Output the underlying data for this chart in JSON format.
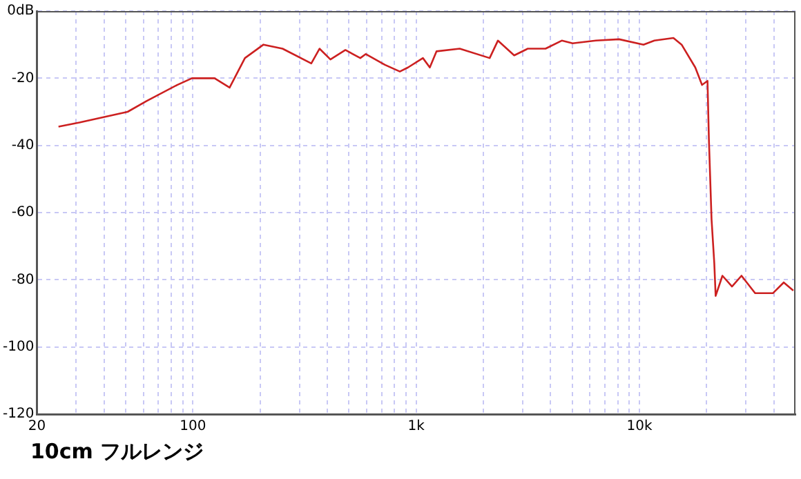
{
  "chart_data": {
    "type": "line",
    "title": "10cm フルレンジ",
    "xlim": [
      20,
      50000
    ],
    "ylim": [
      -120,
      0
    ],
    "log": "x",
    "grid": true,
    "legend": false,
    "marker": "none",
    "line_style": "solid",
    "xticks": [
      {
        "value": 20,
        "label": "20"
      },
      {
        "value": 30,
        "label": null
      },
      {
        "value": 40,
        "label": null
      },
      {
        "value": 50,
        "label": null
      },
      {
        "value": 60,
        "label": null
      },
      {
        "value": 70,
        "label": null
      },
      {
        "value": 80,
        "label": null
      },
      {
        "value": 90,
        "label": null
      },
      {
        "value": 100,
        "label": "100"
      },
      {
        "value": 200,
        "label": null
      },
      {
        "value": 300,
        "label": null
      },
      {
        "value": 400,
        "label": null
      },
      {
        "value": 500,
        "label": null
      },
      {
        "value": 600,
        "label": null
      },
      {
        "value": 700,
        "label": null
      },
      {
        "value": 800,
        "label": null
      },
      {
        "value": 900,
        "label": null
      },
      {
        "value": 1000,
        "label": "1k"
      },
      {
        "value": 2000,
        "label": null
      },
      {
        "value": 3000,
        "label": null
      },
      {
        "value": 4000,
        "label": null
      },
      {
        "value": 5000,
        "label": null
      },
      {
        "value": 6000,
        "label": null
      },
      {
        "value": 7000,
        "label": null
      },
      {
        "value": 8000,
        "label": null
      },
      {
        "value": 9000,
        "label": null
      },
      {
        "value": 10000,
        "label": "10k"
      },
      {
        "value": 20000,
        "label": null
      },
      {
        "value": 30000,
        "label": null
      },
      {
        "value": 40000,
        "label": null
      }
    ],
    "yticks": [
      {
        "value": 0,
        "label": "0dB"
      },
      -20,
      -40,
      -60,
      -80,
      -100,
      -120
    ],
    "series": [
      {
        "color": "#cc2020",
        "x": [
          25,
          31,
          51,
          62,
          85,
          99,
          125,
          146,
          171,
          207,
          252,
          339,
          369,
          413,
          482,
          562,
          595,
          724,
          845,
          919,
          1072,
          1151,
          1233,
          1567,
          2134,
          2323,
          2748,
          3162,
          3796,
          4490,
          5021,
          6383,
          8110,
          10430,
          11670,
          14200,
          15450,
          17790,
          19070,
          20180,
          20470,
          21040,
          21640,
          21950,
          23540,
          25980,
          28650,
          32980,
          39600,
          44300,
          48900
        ],
        "values": [
          -34.4,
          -33.2,
          -30,
          -26.8,
          -22,
          -20,
          -20,
          -22.8,
          -14,
          -10,
          -11.2,
          -15.6,
          -11.2,
          -14.4,
          -11.6,
          -14,
          -12.8,
          -16,
          -18,
          -16.8,
          -14,
          -16.8,
          -12,
          -11.2,
          -14,
          -8.8,
          -13.2,
          -11.2,
          -11.2,
          -8.8,
          -9.6,
          -8.8,
          -8.4,
          -10,
          -8.8,
          -8,
          -10,
          -16.8,
          -22,
          -20.8,
          -38,
          -62,
          -75,
          -84.8,
          -78.8,
          -82,
          -78.8,
          -84,
          -84,
          -80.8,
          -83.2
        ]
      }
    ]
  }
}
